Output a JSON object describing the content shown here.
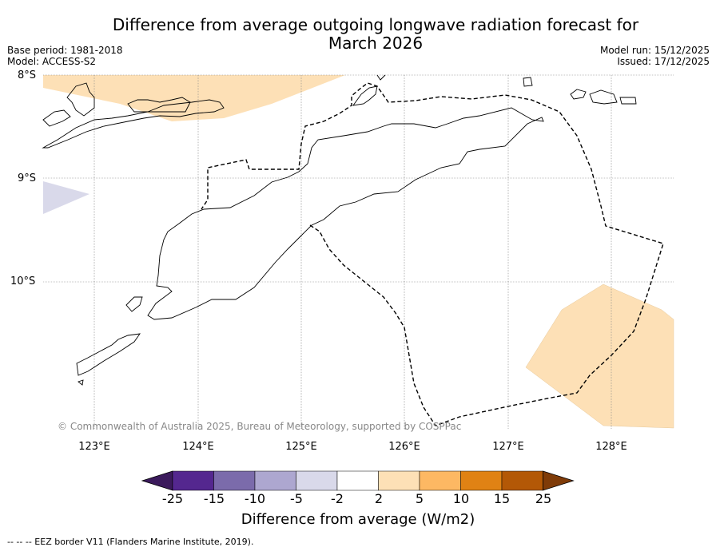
{
  "title": "Difference from average outgoing longwave radiation forecast for March 2026",
  "title_lines": [
    "Difference from average outgoing longwave radiation forecast for",
    "March 2026"
  ],
  "meta_left": [
    "Base period: 1981-2018",
    "Model: ACCESS-S2"
  ],
  "meta_right": [
    "Model run: 15/12/2025",
    "Issued: 17/12/2025"
  ],
  "lat_labels": [
    "8°S",
    "9°S",
    "10°S"
  ],
  "lon_labels": [
    "123°E",
    "124°E",
    "125°E",
    "126°E",
    "127°E",
    "128°E"
  ],
  "copyright": "© Commonwealth of Australia 2025, Bureau of Meteorology, supported by COSPPac",
  "colorbar": {
    "ticks": [
      "-25",
      "-15",
      "-10",
      "-5",
      "-2",
      "2",
      "5",
      "10",
      "15",
      "25"
    ],
    "colors": [
      "#3b1a5c",
      "#54278f",
      "#7b6bab",
      "#ada7d0",
      "#d9d9ea",
      "#ffffff",
      "#fde0b6",
      "#fdb863",
      "#e08214",
      "#b35806",
      "#7f3b08"
    ],
    "label": "Difference from average (W/m2)"
  },
  "legend": "--  --  -- EEZ border V11 (Flanders Marine Institute, 2019)."
}
